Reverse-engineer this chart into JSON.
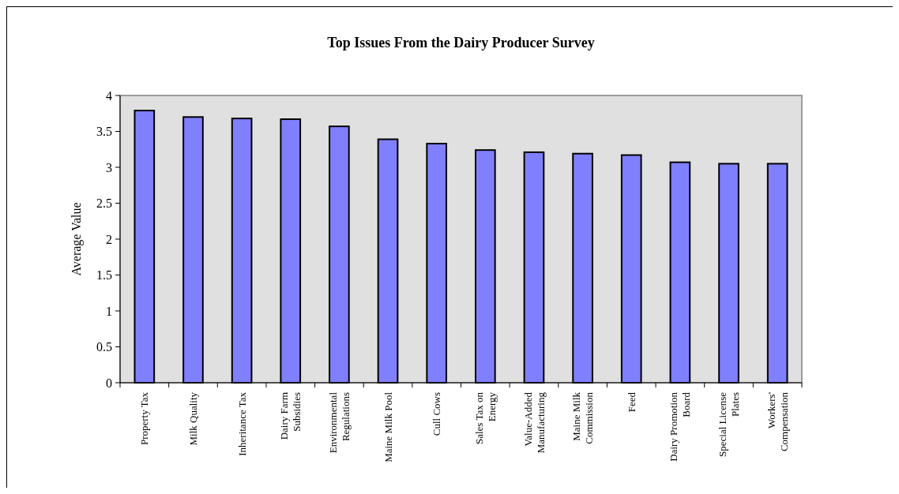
{
  "chart_data": {
    "type": "bar",
    "title": "Top Issues From the Dairy Producer Survey",
    "ylabel": "Average Value",
    "categories": [
      "Property Tax",
      "Milk Quality",
      "Inheritance Tax",
      "Dairy Farm\nSubsidies",
      "Environmental\nRegulations",
      "Maine Milk Pool",
      "Cull Cows",
      "Sales Tax on\nEnergy",
      "Value-Added\nManufacturing",
      "Maine Milk\nCommission",
      "Feed",
      "Dairy Promotion\nBoard",
      "Special License\nPlates",
      "Workers'\nCompensation"
    ],
    "values": [
      3.79,
      3.7,
      3.68,
      3.67,
      3.57,
      3.39,
      3.33,
      3.24,
      3.21,
      3.19,
      3.17,
      3.07,
      3.05,
      3.05
    ],
    "color": "#8080ff",
    "ylim": [
      0,
      4
    ],
    "yticks": [
      0,
      0.5,
      1,
      1.5,
      2,
      2.5,
      3,
      3.5,
      4
    ],
    "grid": false
  }
}
